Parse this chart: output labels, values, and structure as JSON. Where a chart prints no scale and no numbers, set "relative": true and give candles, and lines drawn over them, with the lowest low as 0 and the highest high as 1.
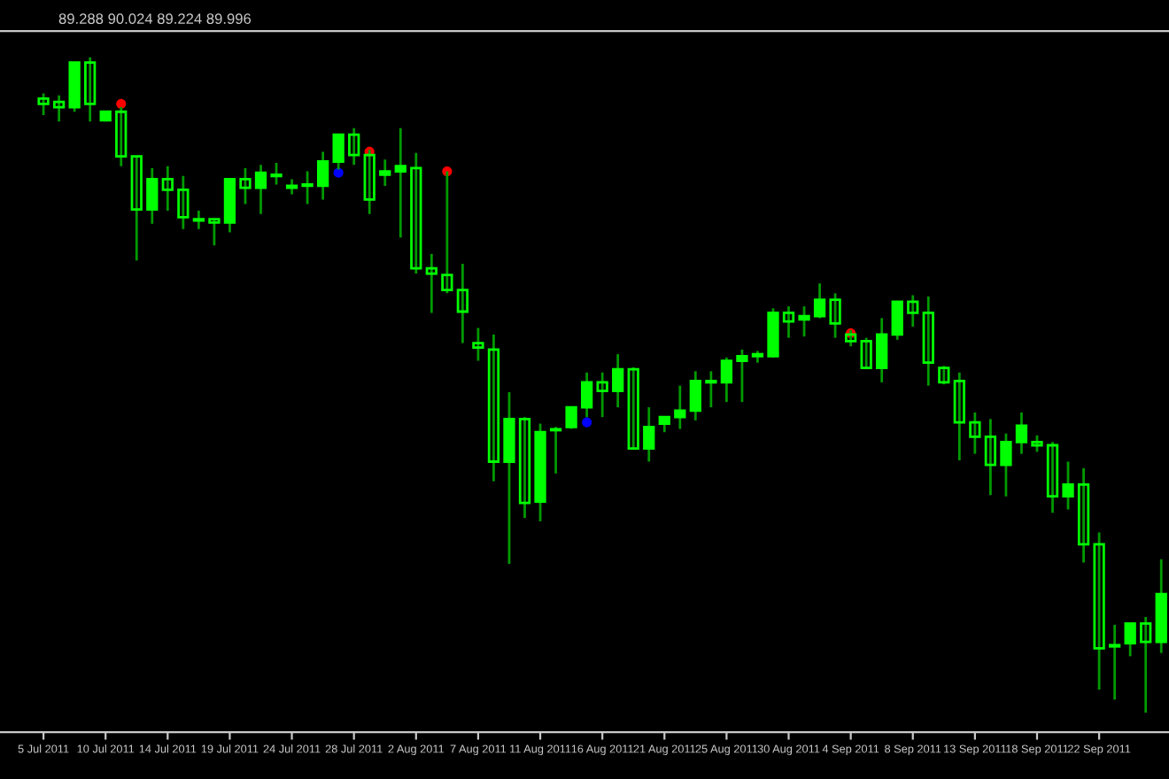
{
  "chart_data": {
    "type": "candlestick",
    "title": "89.288 90.024 89.224 89.996",
    "relative": true,
    "color": "#00ff00",
    "grid": false,
    "legend": false,
    "categories": [
      "5 Jul 2011",
      null,
      null,
      null,
      "10 Jul 2011",
      null,
      null,
      null,
      "14 Jul 2011",
      null,
      null,
      null,
      "19 Jul 2011",
      null,
      null,
      null,
      "24 Jul 2011",
      null,
      null,
      null,
      "28 Jul 2011",
      null,
      null,
      null,
      "2 Aug 2011",
      null,
      null,
      null,
      "7 Aug 2011",
      null,
      null,
      null,
      "11 Aug 2011",
      null,
      null,
      null,
      "16 Aug 2011",
      null,
      null,
      null,
      "21 Aug 2011",
      null,
      null,
      null,
      "25 Aug 2011",
      null,
      null,
      null,
      "30 Aug 2011",
      null,
      null,
      null,
      "4 Sep 2011",
      null,
      null,
      null,
      "8 Sep 2011",
      null,
      null,
      null,
      "13 Sep 2011",
      null,
      null,
      null,
      "18 Sep 2011",
      null,
      null,
      null,
      "22 Sep 2011",
      null,
      null,
      null,
      null
    ],
    "ohlc": [
      [
        0.937,
        0.945,
        0.912,
        0.929
      ],
      [
        0.932,
        0.942,
        0.902,
        0.924
      ],
      [
        0.924,
        0.992,
        0.917,
        0.992
      ],
      [
        0.992,
        1,
        0.902,
        0.929
      ],
      [
        0.904,
        0.917,
        0.902,
        0.917
      ],
      [
        0.917,
        0.924,
        0.834,
        0.849
      ],
      [
        0.849,
        0.849,
        0.69,
        0.768
      ],
      [
        0.768,
        0.831,
        0.746,
        0.814
      ],
      [
        0.814,
        0.834,
        0.766,
        0.798
      ],
      [
        0.798,
        0.819,
        0.738,
        0.756
      ],
      [
        0.753,
        0.766,
        0.738,
        0.751
      ],
      [
        0.753,
        0.753,
        0.713,
        0.748
      ],
      [
        0.748,
        0.814,
        0.733,
        0.814
      ],
      [
        0.814,
        0.831,
        0.776,
        0.801
      ],
      [
        0.801,
        0.836,
        0.761,
        0.824
      ],
      [
        0.819,
        0.839,
        0.806,
        0.821
      ],
      [
        0.801,
        0.814,
        0.791,
        0.804
      ],
      [
        0.804,
        0.826,
        0.776,
        0.806
      ],
      [
        0.804,
        0.856,
        0.783,
        0.841
      ],
      [
        0.841,
        0.882,
        0.829,
        0.882
      ],
      [
        0.882,
        0.892,
        0.836,
        0.851
      ],
      [
        0.851,
        0.859,
        0.761,
        0.783
      ],
      [
        0.821,
        0.844,
        0.804,
        0.826
      ],
      [
        0.826,
        0.892,
        0.725,
        0.834
      ],
      [
        0.831,
        0.854,
        0.67,
        0.678
      ],
      [
        0.678,
        0.7,
        0.61,
        0.67
      ],
      [
        0.668,
        0.826,
        0.64,
        0.645
      ],
      [
        0.645,
        0.685,
        0.564,
        0.612
      ],
      [
        0.564,
        0.587,
        0.537,
        0.557
      ],
      [
        0.554,
        0.577,
        0.353,
        0.383
      ],
      [
        0.383,
        0.489,
        0.227,
        0.448
      ],
      [
        0.448,
        0.451,
        0.297,
        0.32
      ],
      [
        0.322,
        0.441,
        0.292,
        0.428
      ],
      [
        0.431,
        0.436,
        0.365,
        0.431
      ],
      [
        0.436,
        0.466,
        0.433,
        0.466
      ],
      [
        0.466,
        0.519,
        0.451,
        0.504
      ],
      [
        0.504,
        0.519,
        0.451,
        0.491
      ],
      [
        0.491,
        0.547,
        0.466,
        0.524
      ],
      [
        0.524,
        0.527,
        0.401,
        0.403
      ],
      [
        0.403,
        0.466,
        0.383,
        0.436
      ],
      [
        0.441,
        0.451,
        0.428,
        0.451
      ],
      [
        0.451,
        0.499,
        0.433,
        0.461
      ],
      [
        0.461,
        0.521,
        0.446,
        0.506
      ],
      [
        0.504,
        0.521,
        0.466,
        0.506
      ],
      [
        0.504,
        0.542,
        0.474,
        0.537
      ],
      [
        0.537,
        0.554,
        0.474,
        0.544
      ],
      [
        0.544,
        0.552,
        0.534,
        0.547
      ],
      [
        0.544,
        0.617,
        0.542,
        0.61
      ],
      [
        0.61,
        0.62,
        0.572,
        0.597
      ],
      [
        0.6,
        0.62,
        0.574,
        0.605
      ],
      [
        0.605,
        0.655,
        0.602,
        0.63
      ],
      [
        0.63,
        0.64,
        0.572,
        0.594
      ],
      [
        0.577,
        0.584,
        0.559,
        0.567
      ],
      [
        0.567,
        0.572,
        0.524,
        0.526
      ],
      [
        0.526,
        0.602,
        0.504,
        0.577
      ],
      [
        0.577,
        0.627,
        0.569,
        0.627
      ],
      [
        0.627,
        0.637,
        0.589,
        0.61
      ],
      [
        0.61,
        0.635,
        0.499,
        0.534
      ],
      [
        0.526,
        0.529,
        0.501,
        0.504
      ],
      [
        0.506,
        0.519,
        0.385,
        0.443
      ],
      [
        0.443,
        0.458,
        0.395,
        0.421
      ],
      [
        0.421,
        0.448,
        0.332,
        0.378
      ],
      [
        0.378,
        0.426,
        0.33,
        0.413
      ],
      [
        0.413,
        0.458,
        0.395,
        0.438
      ],
      [
        0.413,
        0.423,
        0.398,
        0.408
      ],
      [
        0.408,
        0.413,
        0.305,
        0.33
      ],
      [
        0.33,
        0.383,
        0.31,
        0.348
      ],
      [
        0.348,
        0.373,
        0.229,
        0.257
      ],
      [
        0.257,
        0.275,
        0.035,
        0.098
      ],
      [
        0.101,
        0.134,
        0.02,
        0.103
      ],
      [
        0.106,
        0.136,
        0.086,
        0.136
      ],
      [
        0.136,
        0.146,
        0,
        0.108
      ],
      [
        0.108,
        0.234,
        0.091,
        0.181
      ]
    ],
    "series": [
      {
        "type": "scatter",
        "color": "#ff0000",
        "values": [
          null,
          null,
          null,
          null,
          null,
          0.929,
          null,
          null,
          null,
          null,
          null,
          null,
          null,
          null,
          null,
          null,
          null,
          null,
          null,
          null,
          null,
          0.856,
          null,
          null,
          null,
          null,
          0.826,
          null,
          null,
          null,
          null,
          null,
          null,
          null,
          null,
          null,
          null,
          null,
          null,
          null,
          null,
          null,
          null,
          null,
          null,
          null,
          null,
          null,
          null,
          null,
          null,
          null,
          0.579,
          null,
          null,
          null,
          null,
          null,
          null,
          null,
          null,
          null,
          null,
          null,
          null,
          null,
          null,
          null,
          null,
          null,
          null,
          null,
          null
        ]
      },
      {
        "type": "scatter",
        "color": "#0000ff",
        "values": [
          null,
          null,
          null,
          null,
          null,
          null,
          null,
          null,
          null,
          null,
          null,
          null,
          null,
          null,
          null,
          null,
          null,
          null,
          null,
          0.824,
          null,
          null,
          null,
          null,
          null,
          null,
          null,
          null,
          null,
          null,
          null,
          null,
          null,
          null,
          null,
          0.443,
          null,
          null,
          null,
          null,
          null,
          null,
          null,
          null,
          null,
          null,
          null,
          null,
          null,
          null,
          null,
          null,
          null,
          null,
          null,
          null,
          null,
          null,
          null,
          null,
          null,
          null,
          null,
          null,
          null,
          null,
          null,
          null,
          null,
          null,
          null,
          null,
          null
        ]
      }
    ]
  }
}
